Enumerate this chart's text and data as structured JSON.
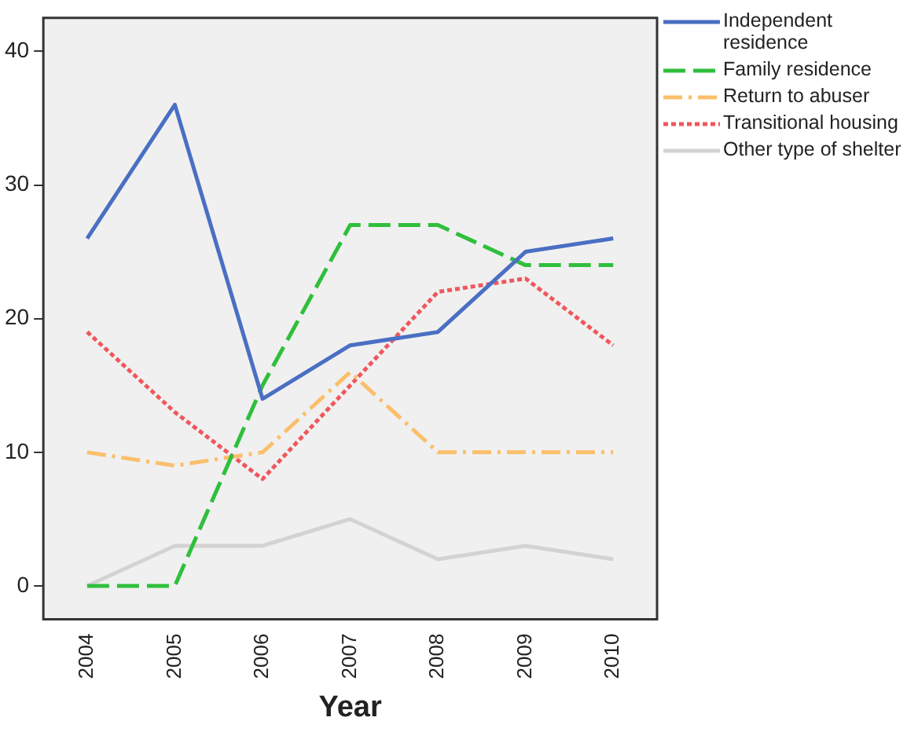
{
  "chart_data": {
    "type": "line",
    "xlabel": "Year",
    "categories": [
      "2004",
      "2005",
      "2006",
      "2007",
      "2008",
      "2009",
      "2010"
    ],
    "series": [
      {
        "name": "Independent residence",
        "color": "#4a6fc3",
        "values": [
          26,
          36,
          14,
          18,
          19,
          25,
          26
        ],
        "line_style": "solid"
      },
      {
        "name": "Family residence",
        "color": "#2fbf3c",
        "values": [
          0,
          0,
          15,
          27,
          27,
          24,
          24
        ],
        "line_style": "dashed"
      },
      {
        "name": "Return to abuser",
        "color": "#fbbf6b",
        "values": [
          10,
          9,
          10,
          16,
          10,
          10,
          10
        ],
        "line_style": "dashdot"
      },
      {
        "name": "Transitional housing",
        "color": "#f0575c",
        "values": [
          19,
          13,
          8,
          15,
          22,
          23,
          18
        ],
        "line_style": "dotted"
      },
      {
        "name": "Other type of shelter",
        "color": "#d3d3d3",
        "values": [
          0,
          3,
          3,
          5,
          2,
          3,
          2
        ],
        "line_style": "solid"
      }
    ],
    "ylim": [
      -2.5,
      42.5
    ],
    "yticks": [
      0,
      10,
      20,
      30,
      40
    ],
    "grid": false,
    "legend": "right",
    "marker": "none"
  }
}
